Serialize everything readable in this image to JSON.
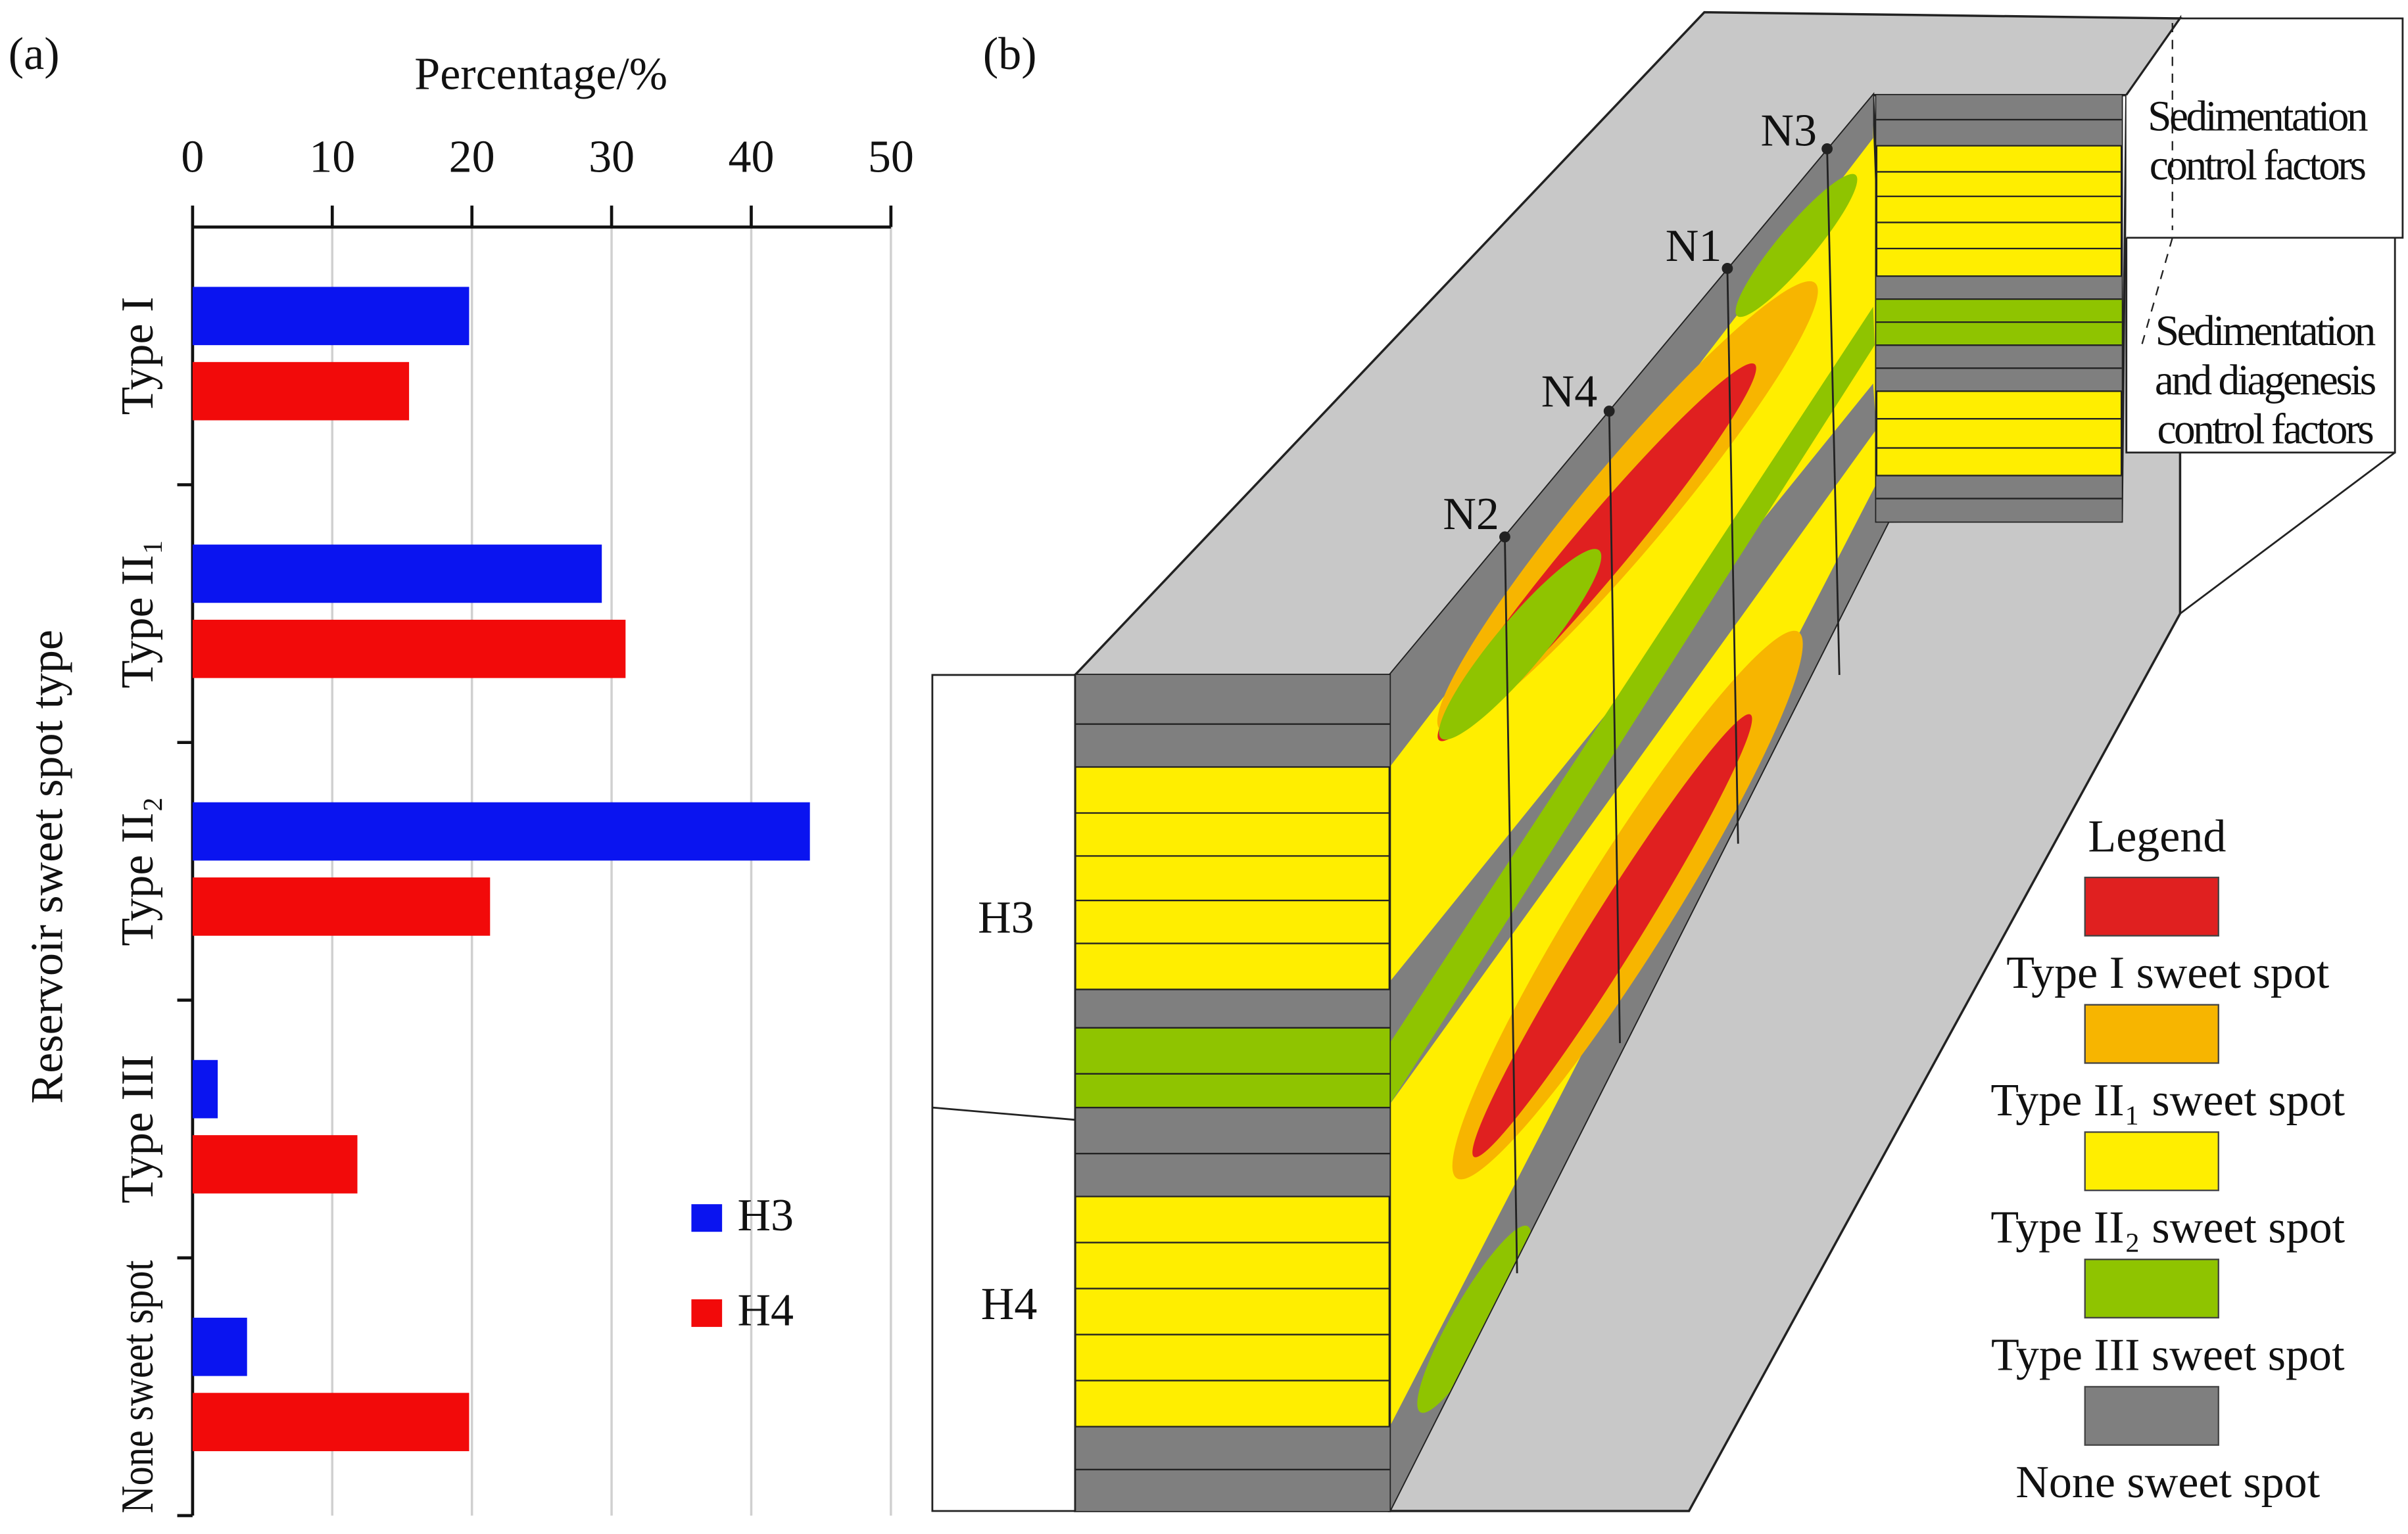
{
  "chart_data": {
    "type": "hbar",
    "panel_label": "(a)",
    "x_label": "Percentage/%",
    "y_label": "Reservoir sweet spot type",
    "categories": [
      "Type I",
      "Type II₁",
      "Type II₂",
      "Type III",
      "None sweet spot"
    ],
    "series": [
      {
        "name": "H3",
        "color": "#0a14f0",
        "values": [
          19.8,
          29.3,
          44.2,
          1.8,
          3.9
        ]
      },
      {
        "name": "H4",
        "color": "#f20a0a",
        "values": [
          15.5,
          31.0,
          21.3,
          11.8,
          19.8
        ]
      }
    ],
    "xlim": [
      0,
      50
    ],
    "xticks": [
      0,
      10,
      20,
      30,
      40,
      50
    ],
    "grid": true,
    "legend": "lower right"
  },
  "diagram": {
    "panel_label": "(b)",
    "wells": [
      "N3",
      "N1",
      "N4",
      "N2"
    ],
    "intervals": [
      "H3",
      "H4"
    ],
    "control_labels": [
      [
        "Sedimentation",
        "control factors"
      ],
      [
        "Sedimentation",
        "and diagenesis",
        "control factors"
      ]
    ],
    "legend": {
      "title": "Legend",
      "items": [
        {
          "label": "Type I sweet spot",
          "color": "#e02020"
        },
        {
          "label": "Type II₁ sweet spot",
          "color": "#f7b500"
        },
        {
          "label": "Type II₂ sweet spot",
          "color": "#ffee00"
        },
        {
          "label": "Type III sweet spot",
          "color": "#8fc400"
        },
        {
          "label": "None sweet spot",
          "color": "#7f7f7f"
        }
      ]
    }
  }
}
